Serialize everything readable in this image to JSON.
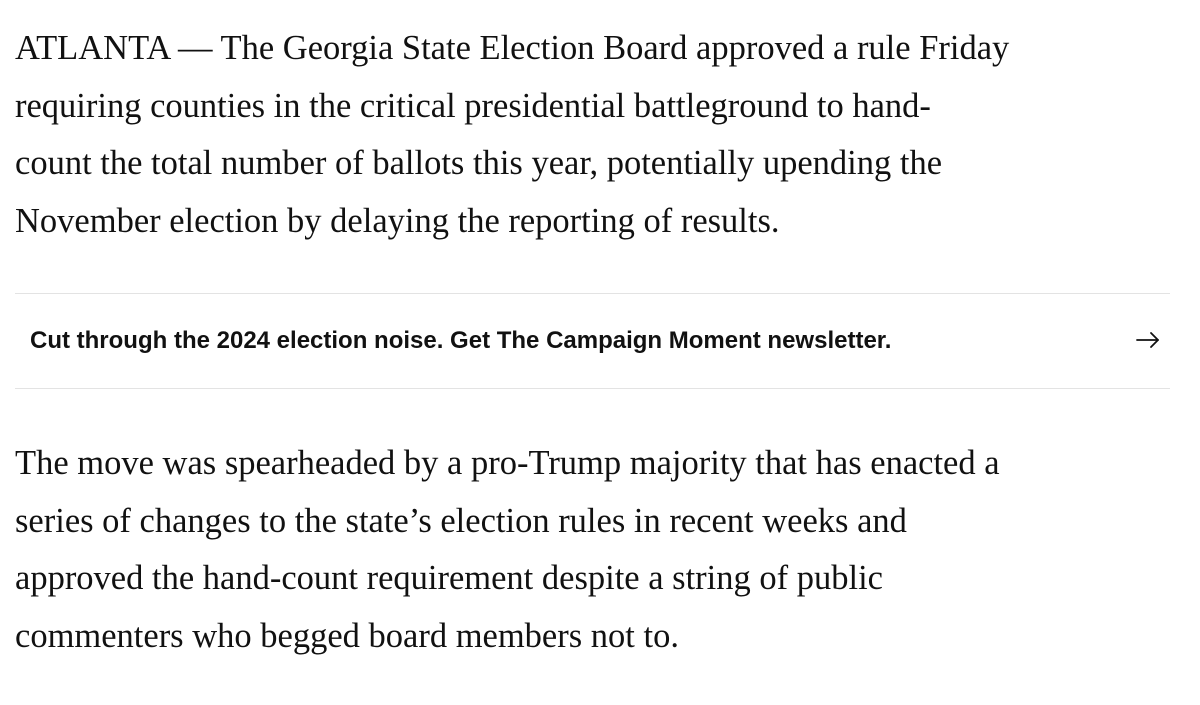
{
  "article": {
    "paragraph_1": {
      "lines": [
        "ATLANTA — The Georgia State Election Board approved a rule Friday",
        "requiring counties in the critical presidential battleground to hand-",
        "count the total number of ballots this year, potentially upending the",
        "November election by delaying the reporting of results."
      ]
    },
    "newsletter_promo": {
      "text": "Cut through the 2024 election noise. Get The Campaign Moment newsletter.",
      "icon": "arrow-right-icon"
    },
    "paragraph_2": {
      "lines": [
        "The move was spearheaded by a pro-Trump majority that has enacted a",
        "series of changes to the state’s election rules in recent weeks and",
        "approved the hand-count requirement despite a string of public",
        "commenters who begged board members not to."
      ]
    }
  },
  "colors": {
    "text": "#111111",
    "divider": "#e3e3e3",
    "background": "#ffffff"
  }
}
